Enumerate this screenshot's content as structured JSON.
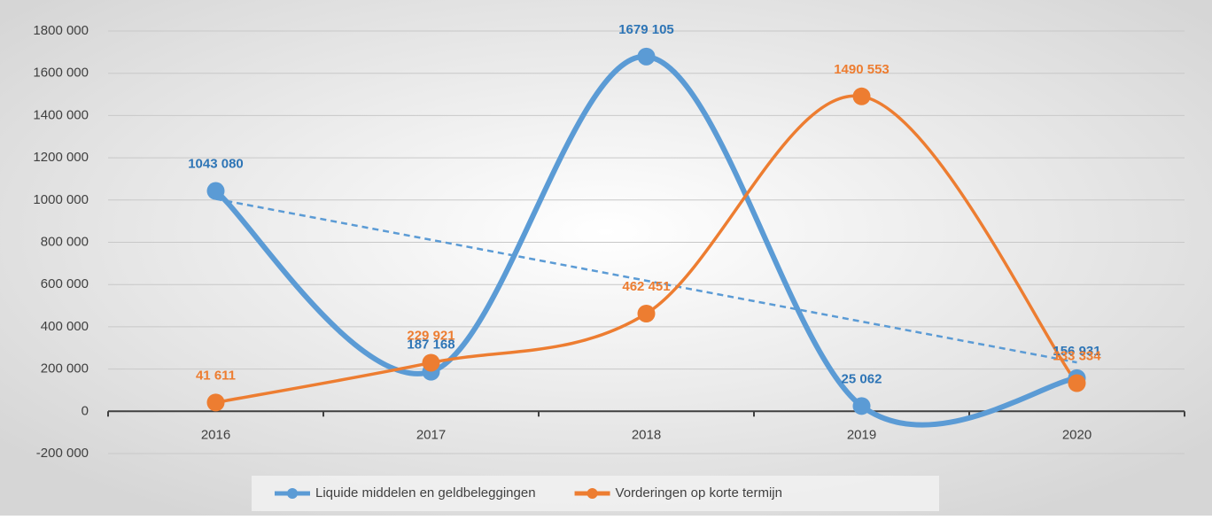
{
  "chart_data": {
    "type": "line",
    "categories": [
      "2016",
      "2017",
      "2018",
      "2019",
      "2020"
    ],
    "series": [
      {
        "name": "Liquide middelen en geldbeleggingen",
        "color": "#5b9bd5",
        "label_color": "#2e75b6",
        "values": [
          1043080,
          187168,
          1679105,
          25062,
          156931
        ],
        "value_labels": [
          "1043 080",
          "187 168",
          "1679 105",
          "25 062",
          "156 931"
        ],
        "smooth": true,
        "trendline": "linear"
      },
      {
        "name": "Vorderingen op korte termijn",
        "color": "#ed7d31",
        "label_color": "#ed7d31",
        "values": [
          41611,
          229921,
          462451,
          1490553,
          133334
        ],
        "value_labels": [
          "41 611",
          "229 921",
          "462 451",
          "1490 553",
          "133 334"
        ],
        "smooth": true
      }
    ],
    "ylim": [
      -200000,
      1800000
    ],
    "yticks": [
      {
        "value": -200000,
        "label": "-200 000"
      },
      0,
      {
        "value": 200000,
        "label": "200 000"
      },
      {
        "value": 400000,
        "label": "400 000"
      },
      {
        "value": 600000,
        "label": "600 000"
      },
      {
        "value": 800000,
        "label": "800 000"
      },
      {
        "value": 1000000,
        "label": "1000 000"
      },
      {
        "value": 1200000,
        "label": "1200 000"
      },
      {
        "value": 1400000,
        "label": "1400 000"
      },
      {
        "value": 1600000,
        "label": "1600 000"
      },
      {
        "value": 1800000,
        "label": "1800 000"
      }
    ],
    "grid": true,
    "legend": "bottom"
  }
}
